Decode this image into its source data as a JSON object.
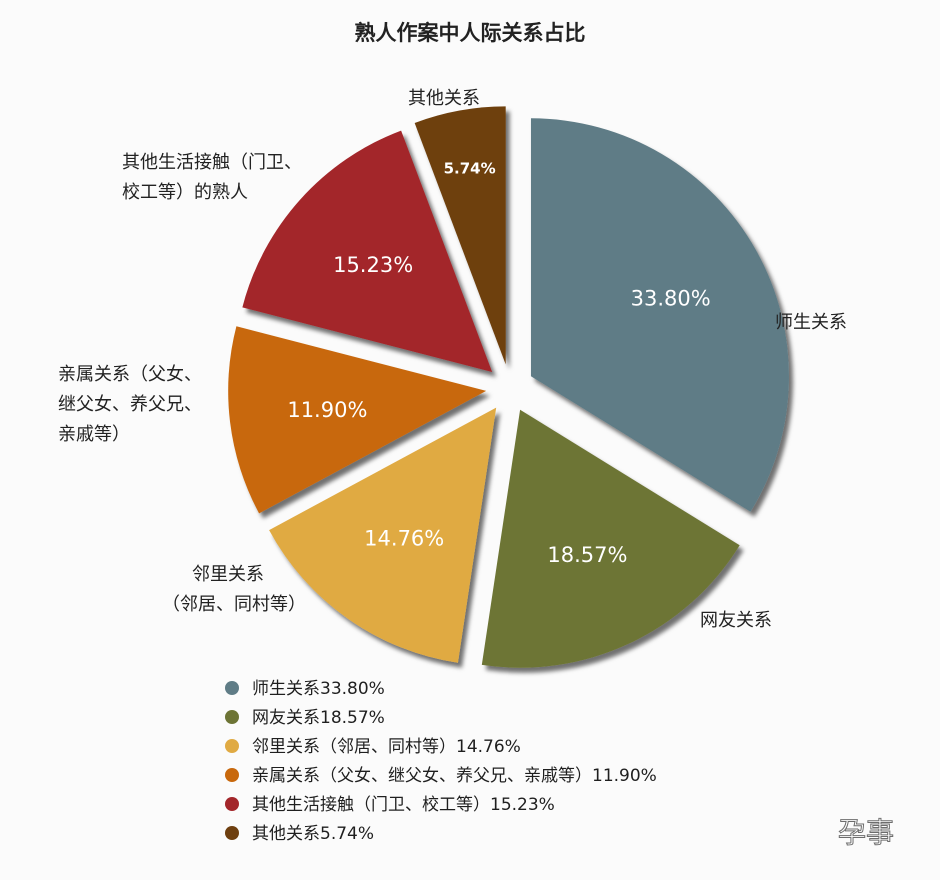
{
  "chart_data": {
    "type": "pie",
    "title": "熟人作案中人际关系占比",
    "unit": "%",
    "slices": [
      {
        "label": "师生关系",
        "value": 33.8,
        "value_label": "33.80%",
        "legend": "师生关系33.80%",
        "color": "#5f7c86",
        "callout": [
          "师生关系"
        ]
      },
      {
        "label": "网友关系",
        "value": 18.57,
        "value_label": "18.57%",
        "legend": "网友关系18.57%",
        "color": "#6d7435",
        "callout": [
          "网友关系"
        ]
      },
      {
        "label": "邻里关系（邻居、同村等）",
        "value": 14.76,
        "value_label": "14.76%",
        "legend": "邻里关系（邻居、同村等）14.76%",
        "color": "#e0aa43",
        "callout": [
          "邻里关系",
          "（邻居、同村等）"
        ]
      },
      {
        "label": "亲属关系（父女、继父女、养父兄、亲戚等）",
        "value": 11.9,
        "value_label": "11.90%",
        "legend": "亲属关系（父女、继父女、养父兄、亲戚等）11.90%",
        "color": "#c8680c",
        "callout": [
          "亲属关系（父女、",
          "继父女、养父兄、",
          "亲戚等）"
        ]
      },
      {
        "label": "其他生活接触（门卫、校工等）的熟人",
        "value": 15.23,
        "value_label": "15.23%",
        "legend": "其他生活接触（门卫、校工等）15.23%",
        "color": "#a3262a",
        "callout": [
          "其他生活接触（门卫、",
          "校工等）的熟人"
        ]
      },
      {
        "label": "其他关系",
        "value": 5.74,
        "value_label": "5.74%",
        "legend": "其他关系5.74%",
        "color": "#6e3f0f",
        "callout": [
          "其他关系"
        ]
      }
    ],
    "legend_position": "bottom-left"
  },
  "watermark": "孕事"
}
